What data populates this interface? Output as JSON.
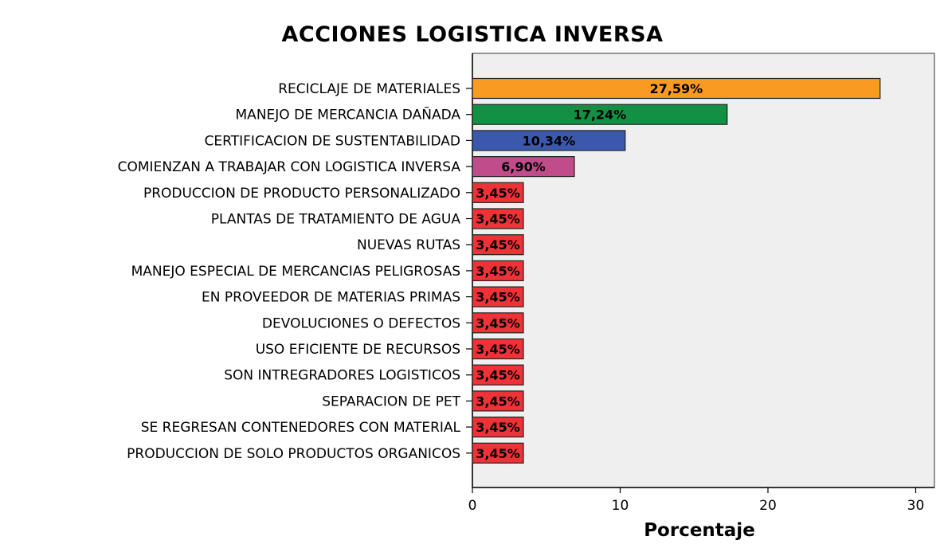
{
  "chart_data": {
    "type": "bar",
    "orientation": "horizontal",
    "title": "ACCIONES LOGISTICA INVERSA",
    "xlabel": "Porcentaje",
    "ylabel": "",
    "xlim": [
      0,
      31
    ],
    "ticks": [
      0,
      10,
      20,
      30
    ],
    "grid": false,
    "legend": "none",
    "plot_background": "#efefef",
    "categories": [
      "RECICLAJE DE MATERIALES",
      "MANEJO DE MERCANCIA DAÑADA",
      "CERTIFICACION DE SUSTENTABILIDAD",
      "COMIENZAN A TRABAJAR CON LOGISTICA INVERSA",
      "PRODUCCION DE PRODUCTO PERSONALIZADO",
      "PLANTAS DE TRATAMIENTO DE AGUA",
      "NUEVAS RUTAS",
      "MANEJO ESPECIAL DE MERCANCIAS PELIGROSAS",
      "EN PROVEEDOR DE MATERIAS PRIMAS",
      "DEVOLUCIONES O DEFECTOS",
      "USO EFICIENTE DE RECURSOS",
      "SON INTREGRADORES LOGISTICOS",
      "SEPARACION DE PET",
      "SE REGRESAN CONTENEDORES CON MATERIAL",
      "PRODUCCION DE SOLO PRODUCTOS ORGANICOS"
    ],
    "values": [
      27.59,
      17.24,
      10.34,
      6.9,
      3.45,
      3.45,
      3.45,
      3.45,
      3.45,
      3.45,
      3.45,
      3.45,
      3.45,
      3.45,
      3.45
    ],
    "data_labels": [
      "27,59%",
      "17,24%",
      "10,34%",
      "6,90%",
      "3,45%",
      "3,45%",
      "3,45%",
      "3,45%",
      "3,45%",
      "3,45%",
      "3,45%",
      "3,45%",
      "3,45%",
      "3,45%",
      "3,45%"
    ],
    "colors": [
      "#f99a21",
      "#129043",
      "#3b58ad",
      "#c04c8b",
      "#ef3237",
      "#ef3237",
      "#ef3237",
      "#ef3237",
      "#ef3237",
      "#ef3237",
      "#ef3237",
      "#ef3237",
      "#ef3237",
      "#ef3237",
      "#ef3237"
    ]
  }
}
